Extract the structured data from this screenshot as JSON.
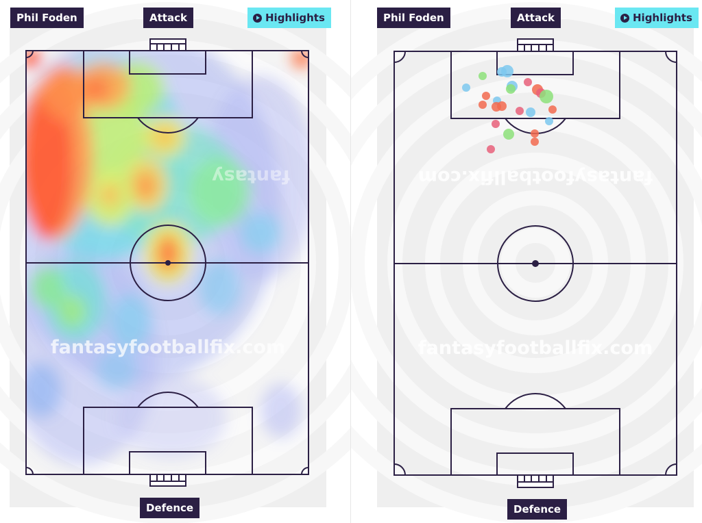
{
  "left_panel": {
    "player_label": "Phil Foden",
    "top_label": "Attack",
    "highlights_label": "Highlights",
    "bottom_label": "Defence",
    "watermark": "fantasyfootballfix.com",
    "watermark_mirrored": "fantasy"
  },
  "right_panel": {
    "player_label": "Phil Foden",
    "top_label": "Attack",
    "highlights_label": "Highlights",
    "bottom_label": "Defence",
    "watermark": "fantasyfootballfix.com",
    "watermark_mirrored": "fantasyfootballfix.com"
  },
  "icons": {
    "highlights": "play-circle-icon"
  },
  "colors": {
    "label_bg": "#2b1f44",
    "highlights_bg": "#6ae7f2",
    "pitch_lines": "#2b1f44",
    "shot_red": "#f26a4f",
    "shot_blue": "#7cc8ee",
    "shot_green": "#8de07a",
    "shot_pink": "#e8607a"
  }
}
